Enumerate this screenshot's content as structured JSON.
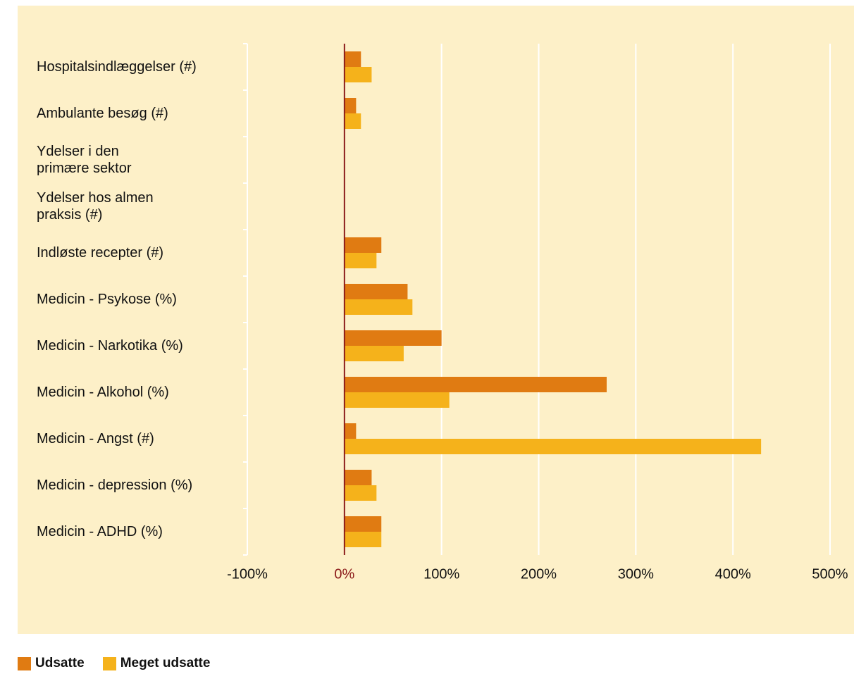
{
  "chart_data": {
    "type": "bar",
    "orientation": "horizontal",
    "categories": [
      "Hospitalsindlæggelser (#)",
      "Ambulante besøg (#)",
      "Ydelser i den\nprimære sektor",
      "Ydelser hos almen\npraksis (#)",
      "Indløste recepter (#)",
      "Medicin - Psykose (%)",
      "Medicin - Narkotika (%)",
      "Medicin - Alkohol (%)",
      "Medicin - Angst (#)",
      "Medicin - depression (%)",
      "Medicin - ADHD (%)"
    ],
    "series": [
      {
        "name": "Udsatte",
        "color": "#e07b12",
        "values": [
          17,
          12,
          null,
          null,
          38,
          65,
          100,
          270,
          12,
          28,
          38
        ]
      },
      {
        "name": "Meget udsatte",
        "color": "#f5b21b",
        "values": [
          28,
          17,
          null,
          null,
          33,
          70,
          61,
          108,
          429,
          33,
          38
        ]
      }
    ],
    "xlim": [
      -100,
      500
    ],
    "xticks": [
      {
        "value": -100,
        "label": "-100%"
      },
      {
        "value": 0,
        "label": "0%"
      },
      {
        "value": 100,
        "label": "100%"
      },
      {
        "value": 200,
        "label": "200%"
      },
      {
        "value": 300,
        "label": "300%"
      },
      {
        "value": 400,
        "label": "400%"
      },
      {
        "value": 500,
        "label": "500%"
      }
    ],
    "grid": true,
    "zero_color": "#8b1a1a",
    "legend": "bottom-left"
  }
}
